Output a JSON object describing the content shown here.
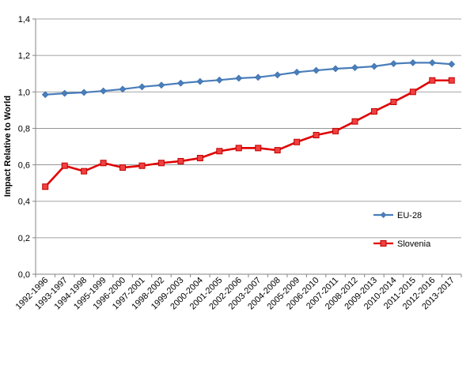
{
  "chart_data": {
    "type": "line",
    "title": "",
    "xlabel": "",
    "ylabel": "Impact Relative to World",
    "ylim": [
      0,
      1.4
    ],
    "yticks": [
      "0,0",
      "0,2",
      "0,4",
      "0,6",
      "0,8",
      "1,0",
      "1,2",
      "1,4"
    ],
    "grid": true,
    "legend_position": "right",
    "categories": [
      "1992-1996",
      "1993-1997",
      "1994-1998",
      "1995-1999",
      "1996-2000",
      "1997-2001",
      "1998-2002",
      "1999-2003",
      "2000-2004",
      "2001-2005",
      "2002-2006",
      "2003-2007",
      "2004-2008",
      "2005-2009",
      "2006-2010",
      "2007-2011",
      "2008-2012",
      "2009-2013",
      "2010-2014",
      "2011-2015",
      "2012-2016",
      "2013-2017"
    ],
    "series": [
      {
        "name": "EU-28",
        "color": "#4a7ebb",
        "marker": "diamond",
        "values": [
          0.985,
          0.992,
          0.997,
          1.005,
          1.015,
          1.028,
          1.037,
          1.048,
          1.057,
          1.065,
          1.075,
          1.08,
          1.093,
          1.108,
          1.118,
          1.127,
          1.133,
          1.14,
          1.155,
          1.16,
          1.16,
          1.152
        ]
      },
      {
        "name": "Slovenia",
        "color": "#e00000",
        "marker": "square",
        "values": [
          0.48,
          0.595,
          0.565,
          0.61,
          0.585,
          0.595,
          0.61,
          0.62,
          0.637,
          0.675,
          0.692,
          0.692,
          0.68,
          0.725,
          0.763,
          0.785,
          0.838,
          0.893,
          0.945,
          1.0,
          1.063,
          1.063
        ]
      }
    ]
  }
}
